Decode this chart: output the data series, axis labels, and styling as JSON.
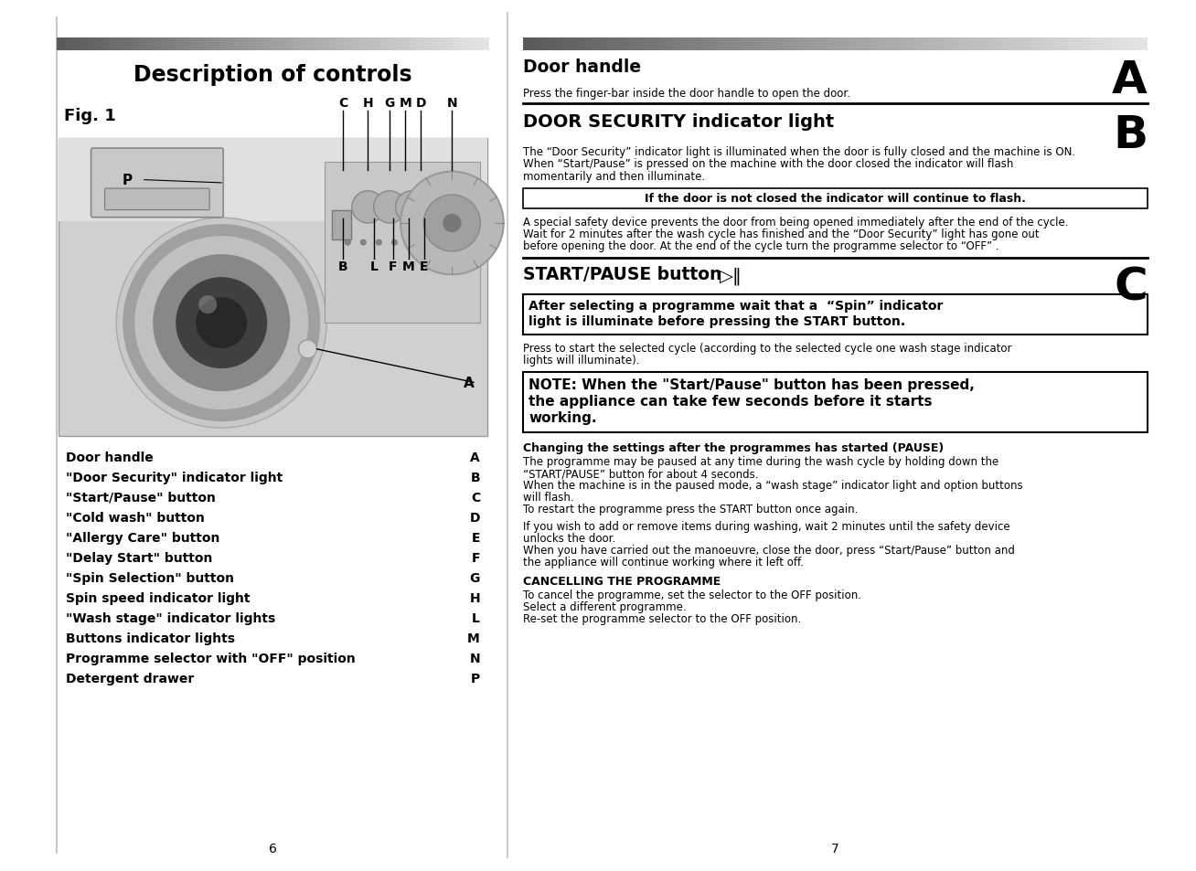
{
  "bg_color": "#ffffff",
  "left_panel": {
    "title": "Description of controls",
    "fig_label": "Fig. 1",
    "labels_top": [
      "C",
      "H",
      "G",
      "M",
      "D",
      "N"
    ],
    "labels_bottom": [
      "B",
      "L",
      "F",
      "M",
      "E"
    ],
    "label_a": "A",
    "label_p": "P",
    "legend_items": [
      [
        "Door handle",
        "A"
      ],
      [
        "\"Door Security\" indicator light",
        "B"
      ],
      [
        "\"Start/Pause\" button",
        "C"
      ],
      [
        "\"Cold wash\" button",
        "D"
      ],
      [
        "\"Allergy Care\" button",
        "E"
      ],
      [
        "\"Delay Start\" button",
        "F"
      ],
      [
        "\"Spin Selection\" button",
        "G"
      ],
      [
        "Spin speed indicator light",
        "H"
      ],
      [
        "\"Wash stage\" indicator lights",
        "L"
      ],
      [
        "Buttons indicator lights",
        "M"
      ],
      [
        "Programme selector with \"OFF\" position",
        "N"
      ],
      [
        "Detergent drawer",
        "P"
      ]
    ],
    "page_num": "6"
  },
  "right_panel": {
    "section_a_title": "Door handle",
    "section_a_letter": "A",
    "section_a_text": "Press the finger-bar inside the door handle to open the door.",
    "section_b_title": "DOOR SECURITY indicator light",
    "section_b_letter": "B",
    "section_b_para1_lines": [
      "The “Door Security” indicator light is illuminated when the door is fully closed and the machine is ON.",
      "When “Start/Pause” is pressed on the machine with the door closed the indicator will flash",
      "momentarily and then illuminate."
    ],
    "section_b_box": "If the door is not closed the indicator will continue to flash.",
    "section_b_para2_lines": [
      "A special safety device prevents the door from being opened immediately after the end of the cycle.",
      "Wait for 2 minutes after the wash cycle has finished and the “Door Security” light has gone out",
      "before opening the door. At the end of the cycle turn the programme selector to “OFF” ."
    ],
    "section_c_title": "START/PAUSE button",
    "section_c_icon": "▷‖",
    "section_c_letter": "C",
    "section_c_box1_lines": [
      "After selecting a programme wait that a  “Spin” indicator",
      "light is illuminate before pressing the START button."
    ],
    "section_c_para_lines": [
      "Press to start the selected cycle (according to the selected cycle one wash stage indicator",
      "lights will illuminate)."
    ],
    "section_c_box2_lines": [
      "NOTE: When the \"Start/Pause\" button has been pressed,",
      "the appliance can take few seconds before it starts",
      "working."
    ],
    "pause_title": "Changing the settings after the programmes has started (PAUSE)",
    "pause_text1_lines": [
      "The programme may be paused at any time during the wash cycle by holding down the",
      "“START/PAUSE” button for about 4 seconds.",
      "When the machine is in the paused mode, a “wash stage” indicator light and option buttons",
      "will flash.",
      "To restart the programme press the START button once again."
    ],
    "pause_text2_lines": [
      "If you wish to add or remove items during washing, wait 2 minutes until the safety device",
      "unlocks the door.",
      "When you have carried out the manoeuvre, close the door, press “Start/Pause” button and",
      "the appliance will continue working where it left off."
    ],
    "cancel_title": "CANCELLING THE PROGRAMME",
    "cancel_text_lines": [
      "To cancel the programme, set the selector to the OFF position.",
      "Select a different programme.",
      "Re-set the programme selector to the OFF position."
    ],
    "page_num": "7"
  }
}
